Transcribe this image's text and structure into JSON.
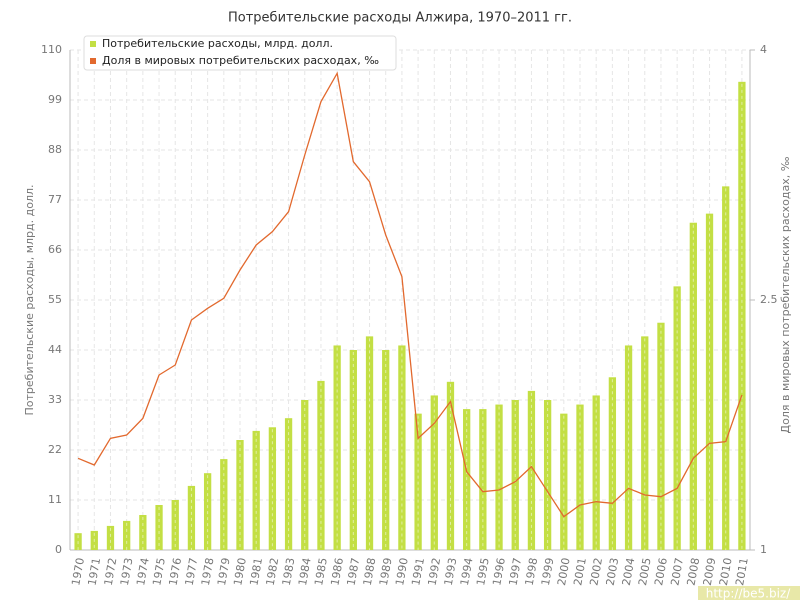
{
  "chart_data": {
    "type": "bar",
    "title": "Потребительские расходы Алжира, 1970–2011 гг.",
    "y_label": "Потребительские расходы, млрд. долл.",
    "y2_label": "Доля в мировых потребительских расходах, ‰",
    "watermark": "http://be5.biz/",
    "categories": [
      "1970",
      "1971",
      "1972",
      "1973",
      "1974",
      "1975",
      "1976",
      "1977",
      "1978",
      "1979",
      "1980",
      "1981",
      "1982",
      "1983",
      "1984",
      "1985",
      "1986",
      "1987",
      "1988",
      "1989",
      "1990",
      "1991",
      "1992",
      "1993",
      "1994",
      "1995",
      "1996",
      "1997",
      "1998",
      "1999",
      "2000",
      "2001",
      "2002",
      "2003",
      "2004",
      "2005",
      "2006",
      "2007",
      "2008",
      "2009",
      "2010",
      "2011"
    ],
    "series": [
      {
        "name": "Потребительские расходы, млрд. долл.",
        "type": "bar",
        "color": "#c3df44",
        "values": [
          3.7,
          4.2,
          5.3,
          6.4,
          7.7,
          9.9,
          11,
          14.1,
          16.9,
          20,
          24.2,
          26.2,
          27,
          29,
          33,
          37.2,
          45,
          44,
          47,
          44,
          45,
          30,
          34,
          37,
          31,
          31,
          32,
          33,
          35,
          33,
          30,
          32,
          34,
          38,
          45,
          47,
          50,
          58,
          72,
          74,
          80,
          103
        ]
      },
      {
        "name": "Доля в мировых потребительских расходах, ‰",
        "type": "line",
        "axis": "y2",
        "color": "#e2692e",
        "values": [
          1.55,
          1.51,
          1.67,
          1.69,
          1.79,
          2.05,
          2.11,
          2.38,
          2.45,
          2.51,
          2.68,
          2.83,
          2.91,
          3.03,
          3.37,
          3.69,
          3.86,
          3.33,
          3.21,
          2.89,
          2.64,
          1.67,
          1.76,
          1.89,
          1.47,
          1.35,
          1.36,
          1.41,
          1.5,
          1.35,
          1.2,
          1.27,
          1.29,
          1.28,
          1.37,
          1.33,
          1.32,
          1.37,
          1.55,
          1.64,
          1.65,
          1.93
        ]
      }
    ],
    "ylim": [
      0,
      110
    ],
    "yticks": [
      0,
      11,
      22,
      33,
      44,
      55,
      66,
      77,
      88,
      99,
      110
    ],
    "y2lim": [
      1,
      4
    ],
    "y2ticks": [
      1,
      2.5,
      4
    ],
    "grid": true,
    "legend": "top-left"
  }
}
